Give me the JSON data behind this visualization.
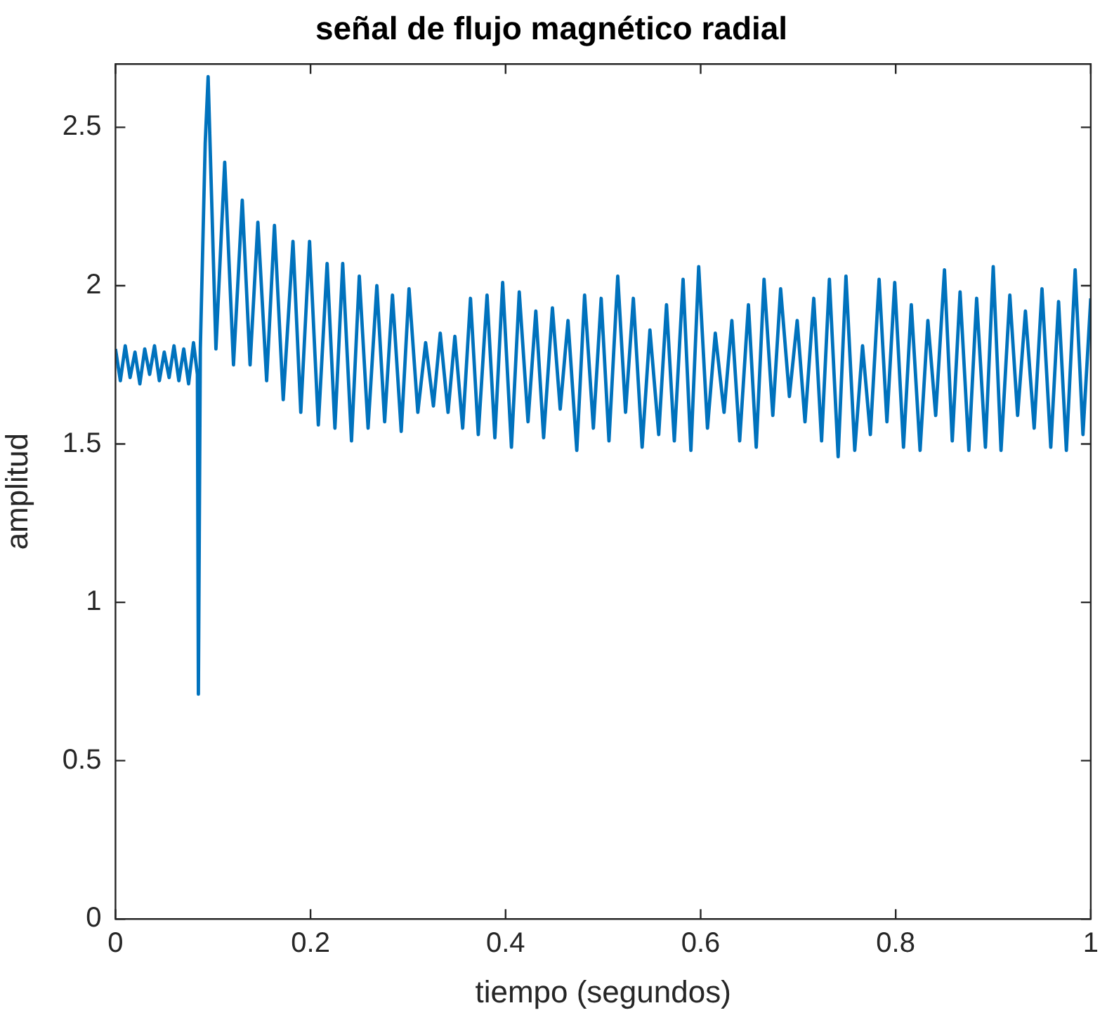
{
  "chart_data": {
    "type": "line",
    "title": "señal de flujo magnético radial",
    "xlabel": "tiempo (segundos)",
    "ylabel": "amplitud",
    "xlim": [
      0,
      1
    ],
    "xticks": [
      0,
      0.2,
      0.4,
      0.6,
      0.8,
      1
    ],
    "ylim": [
      0,
      2.7
    ],
    "yticks": [
      0,
      0.5,
      1,
      1.5,
      2,
      2.5
    ],
    "grid": false,
    "legend": false,
    "marker": "none",
    "line_style": "solid",
    "series": [
      {
        "color": "#0072bd",
        "x": [
          0,
          0.005,
          0.01,
          0.015,
          0.02,
          0.025,
          0.03,
          0.035,
          0.04,
          0.045,
          0.05,
          0.055,
          0.06,
          0.065,
          0.07,
          0.075,
          0.08,
          0.084,
          0.085,
          0.087,
          0.092,
          0.095,
          0.103,
          0.112,
          0.121,
          0.13,
          0.138,
          0.146,
          0.155,
          0.163,
          0.172,
          0.182,
          0.19,
          0.199,
          0.208,
          0.217,
          0.225,
          0.233,
          0.242,
          0.25,
          0.259,
          0.268,
          0.276,
          0.284,
          0.293,
          0.301,
          0.31,
          0.318,
          0.326,
          0.333,
          0.341,
          0.348,
          0.356,
          0.364,
          0.372,
          0.381,
          0.389,
          0.397,
          0.406,
          0.414,
          0.423,
          0.431,
          0.439,
          0.448,
          0.456,
          0.464,
          0.473,
          0.481,
          0.49,
          0.498,
          0.506,
          0.515,
          0.523,
          0.531,
          0.54,
          0.548,
          0.557,
          0.565,
          0.573,
          0.582,
          0.59,
          0.598,
          0.607,
          0.615,
          0.624,
          0.632,
          0.64,
          0.649,
          0.657,
          0.665,
          0.674,
          0.682,
          0.691,
          0.699,
          0.707,
          0.716,
          0.724,
          0.732,
          0.741,
          0.749,
          0.758,
          0.766,
          0.774,
          0.783,
          0.791,
          0.799,
          0.808,
          0.816,
          0.825,
          0.833,
          0.841,
          0.85,
          0.858,
          0.866,
          0.875,
          0.883,
          0.892,
          0.9,
          0.908,
          0.917,
          0.925,
          0.933,
          0.942,
          0.95,
          0.959,
          0.967,
          0.975,
          0.984,
          0.992,
          1
        ],
        "values": [
          1.8,
          1.7,
          1.81,
          1.71,
          1.79,
          1.69,
          1.8,
          1.72,
          1.81,
          1.7,
          1.79,
          1.71,
          1.81,
          1.7,
          1.8,
          1.69,
          1.82,
          1.72,
          0.71,
          1.8,
          2.45,
          2.66,
          1.8,
          2.39,
          1.75,
          2.27,
          1.75,
          2.2,
          1.7,
          2.19,
          1.64,
          2.14,
          1.6,
          2.14,
          1.56,
          2.07,
          1.55,
          2.07,
          1.51,
          2.03,
          1.55,
          2,
          1.57,
          1.97,
          1.54,
          1.99,
          1.6,
          1.82,
          1.62,
          1.85,
          1.6,
          1.84,
          1.55,
          1.96,
          1.53,
          1.97,
          1.52,
          2.01,
          1.49,
          1.98,
          1.57,
          1.92,
          1.52,
          1.93,
          1.61,
          1.89,
          1.48,
          1.97,
          1.55,
          1.96,
          1.51,
          2.03,
          1.6,
          1.96,
          1.49,
          1.86,
          1.53,
          1.94,
          1.51,
          2.02,
          1.48,
          2.06,
          1.55,
          1.85,
          1.6,
          1.89,
          1.51,
          1.94,
          1.49,
          2.02,
          1.59,
          1.99,
          1.65,
          1.89,
          1.57,
          1.96,
          1.51,
          2.02,
          1.46,
          2.03,
          1.48,
          1.81,
          1.53,
          2.02,
          1.57,
          2.01,
          1.49,
          1.94,
          1.48,
          1.89,
          1.59,
          2.05,
          1.51,
          1.98,
          1.48,
          1.96,
          1.49,
          2.06,
          1.48,
          1.97,
          1.59,
          1.92,
          1.55,
          1.99,
          1.49,
          1.95,
          1.48,
          2.05,
          1.53,
          1.96
        ]
      }
    ]
  }
}
